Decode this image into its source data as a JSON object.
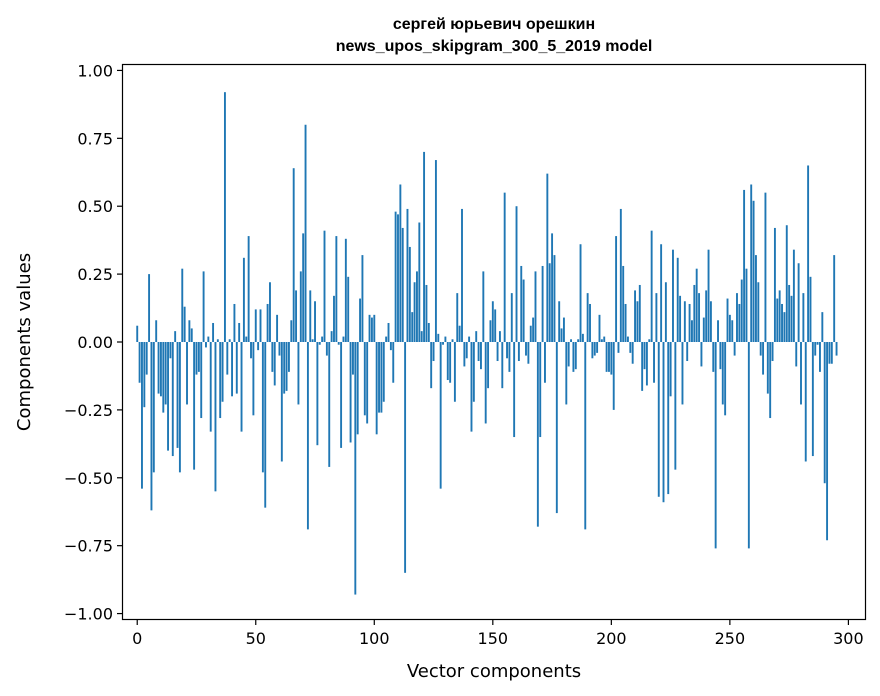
{
  "chart_data": {
    "type": "bar",
    "title_line1": "сергей юрьевич орешкин",
    "title_line2": "news_upos_skipgram_300_5_2019 model",
    "xlabel": "Vector components",
    "ylabel": "Components values",
    "xlim": [
      -6,
      307
    ],
    "ylim": [
      -1.02,
      1.02
    ],
    "xticks": [
      0,
      50,
      100,
      150,
      200,
      250,
      300
    ],
    "yticks": [
      1.0,
      0.75,
      0.5,
      0.25,
      0.0,
      -0.25,
      -0.5,
      -0.75,
      -1.0
    ],
    "ytick_labels": [
      "1.00",
      "0.75",
      "0.50",
      "0.25",
      "0.00",
      "−0.25",
      "−0.50",
      "−0.75",
      "−1.00"
    ],
    "grid": false,
    "bar_color": "#1f77b4",
    "values": [
      0.06,
      -0.15,
      -0.54,
      -0.24,
      -0.12,
      0.25,
      -0.62,
      -0.48,
      0.08,
      -0.19,
      -0.2,
      -0.26,
      -0.23,
      -0.4,
      -0.06,
      -0.42,
      0.04,
      -0.39,
      -0.48,
      0.27,
      0.13,
      -0.23,
      0.08,
      0.05,
      -0.47,
      -0.12,
      -0.11,
      -0.28,
      0.26,
      -0.02,
      0.02,
      -0.33,
      0.07,
      -0.55,
      0.01,
      -0.28,
      -0.22,
      0.92,
      -0.12,
      0.01,
      -0.2,
      0.14,
      -0.19,
      0.07,
      -0.33,
      0.31,
      0.02,
      0.39,
      -0.06,
      -0.27,
      0.12,
      -0.03,
      0.12,
      -0.48,
      -0.61,
      0.14,
      0.22,
      -0.11,
      -0.16,
      0.1,
      -0.05,
      -0.44,
      -0.19,
      -0.18,
      -0.11,
      0.08,
      0.64,
      0.19,
      -0.23,
      0.26,
      0.4,
      0.8,
      -0.69,
      0.19,
      0.01,
      0.15,
      -0.38,
      -0.01,
      0.02,
      0.41,
      -0.05,
      -0.46,
      0.04,
      0.17,
      0.39,
      -0.01,
      -0.39,
      0.02,
      0.38,
      0.24,
      -0.37,
      -0.12,
      -0.93,
      -0.34,
      0.16,
      0.32,
      -0.27,
      -0.3,
      0.1,
      0.09,
      0.1,
      -0.34,
      -0.26,
      -0.26,
      -0.22,
      0.02,
      0.07,
      -0.03,
      -0.15,
      0.48,
      0.47,
      0.58,
      0.42,
      -0.85,
      0.49,
      0.35,
      0.11,
      0.22,
      0.26,
      0.44,
      0.04,
      0.7,
      0.21,
      0.07,
      -0.17,
      -0.07,
      0.67,
      0.03,
      -0.54,
      -0.01,
      0.02,
      -0.14,
      -0.15,
      0.01,
      -0.22,
      0.18,
      0.06,
      0.49,
      -0.09,
      -0.06,
      0.02,
      -0.33,
      -0.22,
      0.04,
      -0.07,
      -0.1,
      0.26,
      -0.3,
      -0.17,
      0.08,
      0.15,
      0.12,
      -0.07,
      0.04,
      -0.17,
      0.55,
      -0.06,
      -0.11,
      0.18,
      -0.35,
      0.5,
      -0.07,
      0.28,
      0.23,
      -0.05,
      -0.08,
      0.06,
      0.09,
      0.26,
      -0.68,
      -0.35,
      0.28,
      -0.15,
      0.62,
      0.29,
      0.4,
      0.32,
      -0.63,
      0.15,
      0.05,
      0.09,
      -0.23,
      -0.09,
      0.01,
      -0.11,
      -0.1,
      0.01,
      0.36,
      0.03,
      -0.69,
      0.18,
      0.14,
      -0.06,
      -0.05,
      -0.04,
      0.1,
      0.01,
      0.02,
      -0.11,
      -0.11,
      -0.12,
      -0.25,
      0.39,
      -0.04,
      0.49,
      0.28,
      0.14,
      0.02,
      -0.04,
      -0.08,
      0.19,
      0.15,
      0.21,
      -0.18,
      -0.1,
      -0.16,
      0.01,
      0.41,
      -0.15,
      0.18,
      -0.57,
      0.36,
      -0.59,
      0.22,
      -0.56,
      -0.2,
      0.34,
      -0.47,
      0.31,
      0.17,
      -0.23,
      0.15,
      -0.07,
      0.14,
      0.08,
      0.21,
      0.27,
      0.18,
      -0.09,
      0.09,
      0.19,
      0.34,
      0.15,
      -0.11,
      -0.76,
      0.08,
      -0.1,
      -0.23,
      -0.27,
      0.16,
      0.1,
      0.08,
      -0.05,
      0.18,
      0.14,
      0.23,
      0.56,
      0.27,
      -0.76,
      0.58,
      0.52,
      0.32,
      0.22,
      -0.05,
      -0.12,
      0.55,
      -0.19,
      -0.28,
      -0.07,
      0.42,
      0.16,
      0.19,
      0.14,
      0.11,
      0.43,
      0.21,
      0.17,
      0.34,
      -0.09,
      0.29,
      -0.23,
      0.18,
      -0.44,
      0.65,
      0.24,
      -0.42,
      -0.05,
      -0.01,
      -0.11,
      0.11,
      -0.52,
      -0.73,
      -0.08,
      -0.08,
      0.32,
      -0.05
    ]
  }
}
